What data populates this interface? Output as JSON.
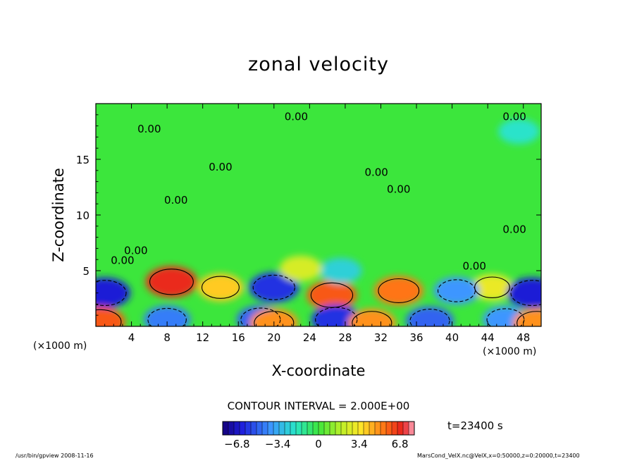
{
  "chart_data": {
    "type": "heatmap",
    "title": "zonal velocity",
    "xlabel": "X-coordinate",
    "ylabel": "Z-coordinate",
    "x_unit_label": "(×1000 m)",
    "x_ticks": [
      4,
      8,
      12,
      16,
      20,
      24,
      28,
      32,
      36,
      40,
      44,
      48
    ],
    "y_ticks": [
      5,
      10,
      15
    ],
    "xlim": [
      0,
      50
    ],
    "ylim": [
      0,
      20
    ],
    "contour_interval_text": "CONTOUR INTERVAL = 2.000E+00",
    "contour_labels": [
      {
        "text": "0.00",
        "x": 22.5,
        "y": 18.5
      },
      {
        "text": "0.00",
        "x": 47.0,
        "y": 18.5
      },
      {
        "text": "0.00",
        "x": 6.0,
        "y": 17.4
      },
      {
        "text": "0.00",
        "x": 14.0,
        "y": 14.0
      },
      {
        "text": "0.00",
        "x": 31.5,
        "y": 13.5
      },
      {
        "text": "0.00",
        "x": 34.0,
        "y": 12.0
      },
      {
        "text": "0.00",
        "x": 9.0,
        "y": 11.0
      },
      {
        "text": "0.00",
        "x": 47.0,
        "y": 8.4
      },
      {
        "text": "0.00",
        "x": 4.5,
        "y": 6.5
      },
      {
        "text": "0.00",
        "x": 3.0,
        "y": 5.6
      },
      {
        "text": "0.00",
        "x": 42.5,
        "y": 5.1
      }
    ],
    "colorbar": {
      "ticks": [
        "-6.8",
        "-3.4",
        "0",
        "3.4",
        "6.8"
      ],
      "range": [
        -8,
        8
      ]
    },
    "features": [
      {
        "x": 8.5,
        "z": 4.0,
        "value": 6.8
      },
      {
        "x": 14.0,
        "z": 3.5,
        "value": 4.0
      },
      {
        "x": 20.0,
        "z": 3.5,
        "value": -6.0
      },
      {
        "x": 26.5,
        "z": 2.8,
        "value": 6.0
      },
      {
        "x": 34.0,
        "z": 3.2,
        "value": 5.5
      },
      {
        "x": 27.5,
        "z": 5.0,
        "value": -2.5
      },
      {
        "x": 23.0,
        "z": 5.2,
        "value": 2.5
      },
      {
        "x": 44.5,
        "z": 3.5,
        "value": 3.0
      },
      {
        "x": 1.0,
        "z": 3.0,
        "value": -6.5
      },
      {
        "x": 49.0,
        "z": 3.0,
        "value": -6.5
      },
      {
        "x": 40.5,
        "z": 3.2,
        "value": -4.0
      },
      {
        "x": 27.0,
        "z": 0.6,
        "value": -6.0
      },
      {
        "x": 18.5,
        "z": 0.6,
        "value": -5.0
      },
      {
        "x": 37.5,
        "z": 0.5,
        "value": -5.0
      },
      {
        "x": 8.0,
        "z": 0.6,
        "value": -4.5
      },
      {
        "x": 46.0,
        "z": 0.6,
        "value": -4.0
      },
      {
        "x": 0.5,
        "z": 0.4,
        "value": 6.0
      },
      {
        "x": 20.0,
        "z": 0.3,
        "value": 5.0
      },
      {
        "x": 31.0,
        "z": 0.3,
        "value": 5.0
      },
      {
        "x": 49.5,
        "z": 0.3,
        "value": 5.0
      },
      {
        "x": 47.5,
        "z": 17.5,
        "value": -2.0
      }
    ]
  },
  "time_label": "t=23400 s",
  "footer_left": "/usr/bin/gpview   2008-11-16",
  "footer_right": "MarsCond_VelX.nc@VelX,x=0:50000,z=0:20000,t=23400"
}
